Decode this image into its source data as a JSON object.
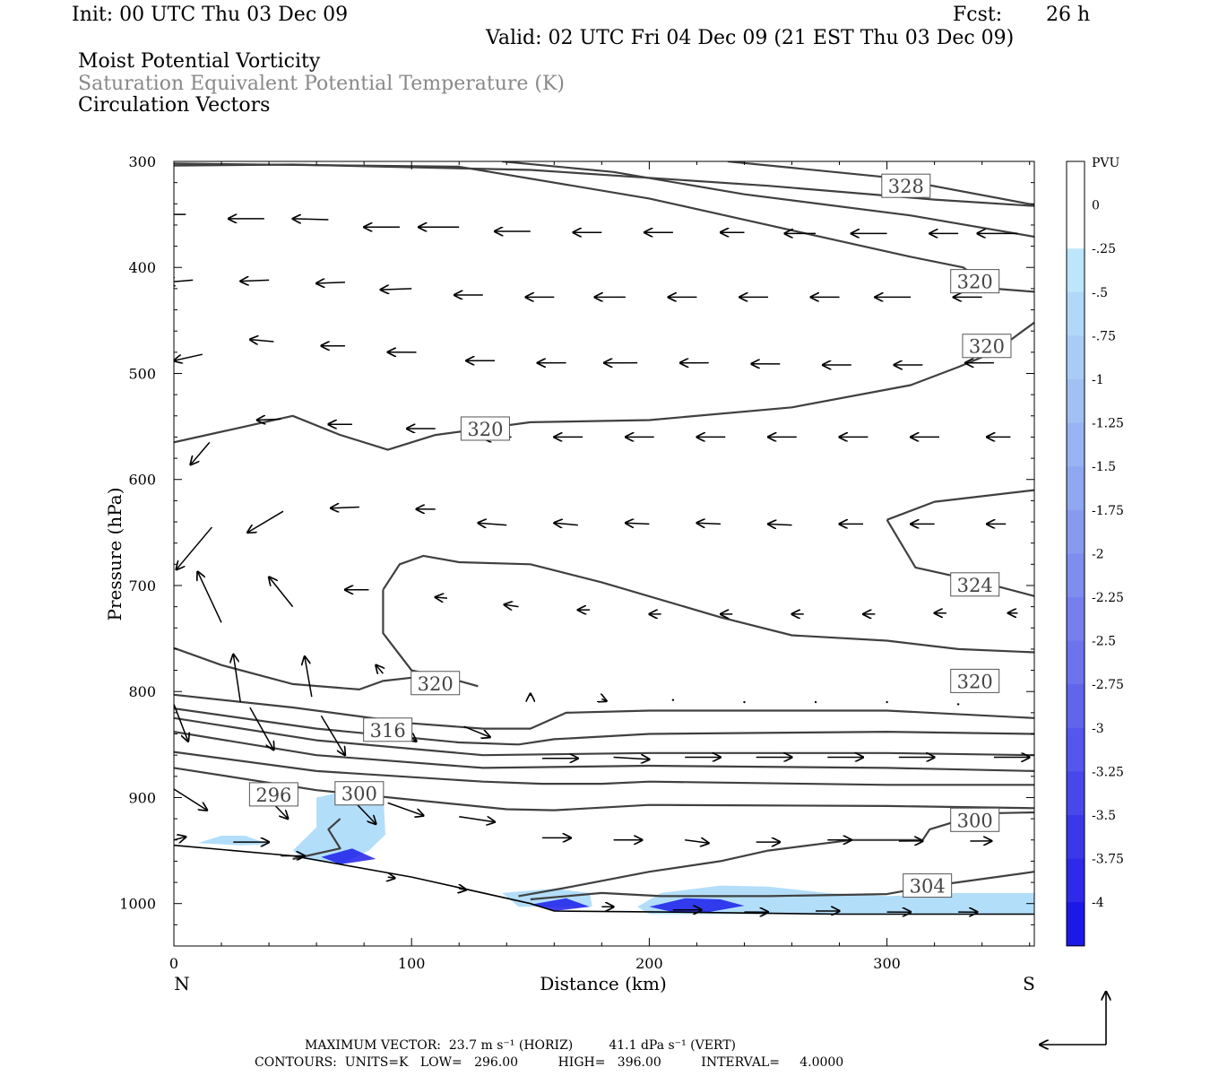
{
  "header": {
    "init": "Init: 00 UTC Thu 03 Dec 09",
    "fcst_label": "Fcst:",
    "fcst_value": "26 h",
    "valid": "Valid: 02 UTC Fri 04 Dec 09 (21 EST Thu 03 Dec 09)",
    "field1": "Moist Potential Vorticity",
    "field2": "Saturation Equivalent Potential Temperature (K)",
    "field3": "Circulation Vectors"
  },
  "footer": {
    "max_vector": "MAXIMUM VECTOR:  23.7 m s⁻¹ (HORIZ)         41.1 dPa s⁻¹ (VERT)",
    "contours": "CONTOURS:  UNITS=K   LOW=   296.00          HIGH=   396.00          INTERVAL=     4.0000"
  },
  "colors": {
    "contour": "#404040",
    "vector": "#000000",
    "fill_light": "#b3defa",
    "fill_deep": "#1010e8"
  },
  "chart_data": {
    "type": "cross-section",
    "xlabel": "Distance (km)",
    "ylabel": "Pressure (hPa)",
    "x_ticks": [
      "0",
      "100",
      "200",
      "300"
    ],
    "y_ticks": [
      "300",
      "400",
      "500",
      "600",
      "700",
      "800",
      "900",
      "1000"
    ],
    "x_end_labels": {
      "left": "N",
      "right": "S"
    },
    "xlim": [
      0,
      362
    ],
    "ylim_hPa": [
      300,
      1040
    ],
    "colorbar": {
      "title": "PVU",
      "labels": [
        "0",
        "-.25",
        "-.5",
        "-.75",
        "-1",
        "-1.25",
        "-1.5",
        "-1.75",
        "-2",
        "-2.25",
        "-2.5",
        "-2.75",
        "-3",
        "-3.25",
        "-3.5",
        "-3.75",
        "-4"
      ],
      "colors": [
        "#ffffff",
        "#ffffff",
        "#bde5fb",
        "#b1d8f9",
        "#a9ccf6",
        "#a1c0f4",
        "#99b3f3",
        "#90a7f1",
        "#889af0",
        "#7f8def",
        "#7580ee",
        "#6b73ed",
        "#6065ec",
        "#5357eb",
        "#4748ea",
        "#3a39ea",
        "#2d2ae9",
        "#1c18e8"
      ]
    },
    "contour_labels": [
      {
        "text": "328",
        "x": 308,
        "p": 323
      },
      {
        "text": "320",
        "x": 337,
        "p": 413
      },
      {
        "text": "320",
        "x": 342,
        "p": 474
      },
      {
        "text": "320",
        "x": 131,
        "p": 552
      },
      {
        "text": "324",
        "x": 337,
        "p": 699
      },
      {
        "text": "320",
        "x": 110,
        "p": 792
      },
      {
        "text": "320",
        "x": 337,
        "p": 790
      },
      {
        "text": "316",
        "x": 90,
        "p": 836
      },
      {
        "text": "296",
        "x": 42,
        "p": 897
      },
      {
        "text": "300",
        "x": 78,
        "p": 896
      },
      {
        "text": "300",
        "x": 337,
        "p": 921
      },
      {
        "text": "304",
        "x": 317,
        "p": 983
      }
    ],
    "contours": [
      [
        [
          0,
          304
        ],
        [
          50,
          303
        ],
        [
          150,
          308
        ],
        [
          250,
          323
        ],
        [
          320,
          336
        ],
        [
          362,
          342
        ]
      ],
      [
        [
          138,
          300
        ],
        [
          185,
          310
        ],
        [
          240,
          331
        ],
        [
          310,
          351
        ],
        [
          362,
          371
        ]
      ],
      [
        [
          233,
          300
        ],
        [
          300,
          315
        ],
        [
          362,
          341
        ]
      ],
      [
        [
          0,
          302
        ],
        [
          120,
          305
        ],
        [
          200,
          335
        ],
        [
          270,
          370
        ],
        [
          310,
          390
        ],
        [
          332,
          400
        ],
        [
          345,
          420
        ],
        [
          362,
          423
        ]
      ],
      [
        [
          0,
          565
        ],
        [
          20,
          555
        ],
        [
          50,
          540
        ],
        [
          70,
          558
        ],
        [
          90,
          572
        ],
        [
          110,
          558
        ],
        [
          150,
          546
        ],
        [
          200,
          544
        ],
        [
          260,
          532
        ],
        [
          310,
          511
        ],
        [
          330,
          494
        ],
        [
          345,
          480
        ],
        [
          362,
          452
        ]
      ],
      [
        [
          300,
          638
        ],
        [
          320,
          621
        ],
        [
          362,
          610
        ]
      ],
      [
        [
          300,
          638
        ],
        [
          312,
          683
        ],
        [
          340,
          697
        ],
        [
          362,
          710
        ]
      ],
      [
        [
          88,
          704
        ],
        [
          95,
          680
        ],
        [
          105,
          672
        ],
        [
          120,
          678
        ],
        [
          150,
          680
        ],
        [
          180,
          697
        ],
        [
          230,
          730
        ],
        [
          260,
          747
        ],
        [
          300,
          752
        ],
        [
          330,
          760
        ],
        [
          362,
          763
        ]
      ],
      [
        [
          88,
          704
        ],
        [
          88,
          745
        ],
        [
          100,
          780
        ],
        [
          120,
          790
        ],
        [
          128,
          795
        ]
      ],
      [
        [
          0,
          759
        ],
        [
          20,
          775
        ],
        [
          50,
          793
        ],
        [
          78,
          798
        ],
        [
          88,
          790
        ],
        [
          100,
          787
        ]
      ],
      [
        [
          0,
          803
        ],
        [
          50,
          815
        ],
        [
          100,
          830
        ],
        [
          130,
          835
        ],
        [
          150,
          835
        ],
        [
          165,
          820
        ],
        [
          200,
          818
        ],
        [
          300,
          818
        ],
        [
          362,
          825
        ]
      ],
      [
        [
          0,
          816
        ],
        [
          60,
          835
        ],
        [
          120,
          848
        ],
        [
          145,
          850
        ],
        [
          160,
          845
        ],
        [
          200,
          840
        ],
        [
          300,
          838
        ],
        [
          362,
          840
        ]
      ],
      [
        [
          0,
          825
        ],
        [
          60,
          846
        ],
        [
          130,
          860
        ],
        [
          200,
          858
        ],
        [
          300,
          858
        ],
        [
          362,
          860
        ]
      ],
      [
        [
          0,
          838
        ],
        [
          60,
          860
        ],
        [
          130,
          872
        ],
        [
          200,
          870
        ],
        [
          300,
          872
        ],
        [
          362,
          875
        ]
      ],
      [
        [
          0,
          857
        ],
        [
          60,
          875
        ],
        [
          130,
          885
        ],
        [
          155,
          887
        ],
        [
          180,
          887
        ],
        [
          200,
          885
        ],
        [
          300,
          888
        ],
        [
          362,
          888
        ]
      ],
      [
        [
          0,
          872
        ],
        [
          60,
          893
        ],
        [
          140,
          911
        ],
        [
          160,
          912
        ],
        [
          200,
          907
        ],
        [
          300,
          908
        ],
        [
          362,
          910
        ]
      ],
      [
        [
          50,
          958
        ],
        [
          70,
          948
        ],
        [
          65,
          930
        ],
        [
          70,
          920
        ]
      ],
      [
        [
          145,
          993
        ],
        [
          165,
          985
        ],
        [
          200,
          970
        ],
        [
          230,
          960
        ],
        [
          250,
          950
        ],
        [
          285,
          940
        ],
        [
          315,
          940
        ],
        [
          318,
          930
        ],
        [
          340,
          915
        ],
        [
          362,
          914
        ]
      ],
      [
        [
          150,
          996
        ],
        [
          180,
          990
        ],
        [
          205,
          993
        ],
        [
          250,
          993
        ],
        [
          300,
          991
        ],
        [
          320,
          983
        ],
        [
          362,
          970
        ]
      ]
    ],
    "terrain": [
      [
        0,
        945
      ],
      [
        50,
        955
      ],
      [
        100,
        975
      ],
      [
        150,
        1000
      ],
      [
        160,
        1007
      ],
      [
        210,
        1008
      ],
      [
        280,
        1010
      ],
      [
        362,
        1010
      ]
    ],
    "shaded_light": [
      [
        [
          10,
          943
        ],
        [
          20,
          936
        ],
        [
          30,
          936
        ],
        [
          40,
          944
        ],
        [
          28,
          945
        ]
      ],
      [
        [
          50,
          950
        ],
        [
          60,
          928
        ],
        [
          60,
          900
        ],
        [
          80,
          890
        ],
        [
          88,
          893
        ],
        [
          89,
          935
        ],
        [
          82,
          950
        ],
        [
          70,
          963
        ],
        [
          55,
          958
        ]
      ],
      [
        [
          138,
          990
        ],
        [
          160,
          986
        ],
        [
          175,
          990
        ],
        [
          176,
          1003
        ],
        [
          145,
          1003
        ]
      ],
      [
        [
          195,
          1003
        ],
        [
          205,
          990
        ],
        [
          230,
          983
        ],
        [
          250,
          984
        ],
        [
          275,
          990
        ],
        [
          300,
          993
        ],
        [
          330,
          990
        ],
        [
          362,
          990
        ],
        [
          362,
          1010
        ],
        [
          200,
          1010
        ]
      ]
    ],
    "shaded_deep": [
      [
        [
          62,
          956
        ],
        [
          75,
          948
        ],
        [
          85,
          958
        ],
        [
          70,
          963
        ]
      ],
      [
        [
          150,
          1001
        ],
        [
          165,
          995
        ],
        [
          175,
          1003
        ],
        [
          160,
          1007
        ]
      ],
      [
        [
          200,
          1003
        ],
        [
          215,
          995
        ],
        [
          230,
          996
        ],
        [
          240,
          1002
        ],
        [
          225,
          1008
        ],
        [
          210,
          1008
        ]
      ]
    ],
    "vectors": [
      [
        5,
        350,
        -15,
        0
      ],
      [
        38,
        354,
        -15,
        0
      ],
      [
        65,
        355,
        -15,
        -1
      ],
      [
        95,
        362,
        -15,
        0
      ],
      [
        120,
        362,
        -17,
        0
      ],
      [
        150,
        366,
        -15,
        0
      ],
      [
        180,
        367,
        -12,
        0
      ],
      [
        210,
        367,
        -12,
        0
      ],
      [
        240,
        367,
        -10,
        0
      ],
      [
        270,
        368,
        -13,
        0
      ],
      [
        300,
        368,
        -15,
        0
      ],
      [
        330,
        368,
        -12,
        0
      ],
      [
        355,
        368,
        -17,
        0
      ],
      [
        8,
        412,
        -11,
        2
      ],
      [
        40,
        412,
        -12,
        1
      ],
      [
        72,
        414,
        -12,
        1
      ],
      [
        100,
        420,
        -13,
        1
      ],
      [
        130,
        426,
        -12,
        0
      ],
      [
        160,
        428,
        -12,
        0
      ],
      [
        190,
        428,
        -13,
        0
      ],
      [
        220,
        428,
        -12,
        0
      ],
      [
        250,
        428,
        -12,
        0
      ],
      [
        280,
        428,
        -12,
        0
      ],
      [
        310,
        428,
        -15,
        0
      ],
      [
        340,
        428,
        -12,
        0
      ],
      [
        12,
        482,
        -12,
        6
      ],
      [
        42,
        470,
        -10,
        -2
      ],
      [
        72,
        474,
        -10,
        0
      ],
      [
        102,
        480,
        -12,
        0
      ],
      [
        135,
        488,
        -12,
        0
      ],
      [
        165,
        490,
        -12,
        0
      ],
      [
        195,
        490,
        -14,
        0
      ],
      [
        225,
        490,
        -12,
        0
      ],
      [
        255,
        491,
        -12,
        0
      ],
      [
        285,
        492,
        -12,
        0
      ],
      [
        315,
        492,
        -12,
        0
      ],
      [
        345,
        490,
        -12,
        0
      ],
      [
        15,
        565,
        -8,
        21
      ],
      [
        45,
        543,
        -10,
        1
      ],
      [
        75,
        548,
        -10,
        0
      ],
      [
        110,
        552,
        -12,
        0
      ],
      [
        142,
        560,
        -12,
        1
      ],
      [
        172,
        560,
        -12,
        0
      ],
      [
        202,
        560,
        -12,
        0
      ],
      [
        232,
        560,
        -12,
        0
      ],
      [
        262,
        560,
        -12,
        0
      ],
      [
        292,
        560,
        -12,
        0
      ],
      [
        322,
        560,
        -12,
        0
      ],
      [
        352,
        560,
        -10,
        0
      ],
      [
        16,
        645,
        -15,
        40
      ],
      [
        46,
        630,
        -15,
        20
      ],
      [
        78,
        626,
        -12,
        1
      ],
      [
        110,
        628,
        -8,
        0
      ],
      [
        140,
        643,
        -12,
        -2
      ],
      [
        170,
        643,
        -10,
        -2
      ],
      [
        200,
        642,
        -10,
        -1
      ],
      [
        230,
        642,
        -10,
        -1
      ],
      [
        260,
        643,
        -10,
        -1
      ],
      [
        290,
        642,
        -10,
        0
      ],
      [
        320,
        642,
        -10,
        0
      ],
      [
        350,
        642,
        -8,
        0
      ],
      [
        20,
        735,
        -10,
        -48
      ],
      [
        50,
        720,
        -10,
        -28
      ],
      [
        82,
        704,
        -10,
        0
      ],
      [
        115,
        712,
        -5,
        -1
      ],
      [
        145,
        720,
        -6,
        -2
      ],
      [
        175,
        723,
        -5,
        0
      ],
      [
        205,
        727,
        -5,
        0
      ],
      [
        235,
        727,
        -5,
        0
      ],
      [
        265,
        727,
        -5,
        0
      ],
      [
        295,
        727,
        -5,
        0
      ],
      [
        325,
        726,
        -5,
        0
      ],
      [
        355,
        726,
        -4,
        0
      ],
      [
        28,
        810,
        -3,
        -45
      ],
      [
        58,
        805,
        -3,
        -38
      ],
      [
        88,
        783,
        -3,
        -8
      ],
      [
        150,
        804,
        0,
        -2
      ],
      [
        180,
        807,
        2,
        2
      ],
      [
        210,
        808,
        0,
        0
      ],
      [
        240,
        810,
        0,
        0
      ],
      [
        270,
        810,
        0,
        0
      ],
      [
        300,
        810,
        0,
        0
      ],
      [
        330,
        812,
        0,
        0
      ],
      [
        0,
        812,
        6,
        35
      ],
      [
        32,
        815,
        10,
        40
      ],
      [
        62,
        823,
        10,
        37
      ],
      [
        92,
        830,
        10,
        17
      ],
      [
        122,
        833,
        11,
        10
      ],
      [
        155,
        863,
        15,
        0
      ],
      [
        185,
        862,
        15,
        2
      ],
      [
        215,
        862,
        15,
        0
      ],
      [
        245,
        862,
        15,
        0
      ],
      [
        275,
        862,
        15,
        0
      ],
      [
        305,
        862,
        15,
        0
      ],
      [
        345,
        862,
        15,
        0
      ],
      [
        0,
        892,
        14,
        20
      ],
      [
        35,
        890,
        13,
        30
      ],
      [
        70,
        890,
        15,
        35
      ],
      [
        90,
        905,
        15,
        12
      ],
      [
        120,
        918,
        15,
        5
      ],
      [
        155,
        938,
        12,
        0
      ],
      [
        185,
        940,
        12,
        0
      ],
      [
        215,
        940,
        10,
        3
      ],
      [
        245,
        942,
        10,
        0
      ],
      [
        275,
        940,
        10,
        0
      ],
      [
        305,
        941,
        10,
        0
      ],
      [
        335,
        941,
        9,
        0
      ],
      [
        0,
        940,
        5,
        -3
      ],
      [
        25,
        942,
        15,
        0
      ],
      [
        45,
        955,
        10,
        0
      ],
      [
        90,
        975,
        3,
        1
      ],
      [
        120,
        986,
        3,
        1
      ],
      [
        180,
        1003,
        5,
        0
      ],
      [
        210,
        1006,
        12,
        0
      ],
      [
        240,
        1008,
        10,
        0
      ],
      [
        270,
        1007,
        10,
        0
      ],
      [
        300,
        1008,
        10,
        0
      ],
      [
        330,
        1008,
        8,
        0
      ]
    ]
  }
}
